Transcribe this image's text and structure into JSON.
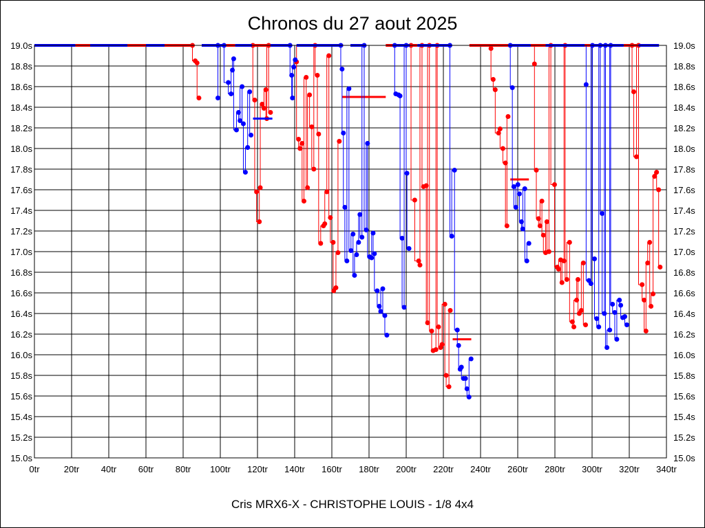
{
  "chart_data": {
    "type": "line",
    "title": "Chronos du 27 aout 2025",
    "subtitle": "Cris MRX6-X - CHRISTOPHE LOUIS - 1/8 4x4",
    "xlabel": "",
    "ylabel": "",
    "xlim": [
      0,
      340
    ],
    "ylim": [
      15.0,
      19.0
    ],
    "grid": true,
    "x_ticks": [
      "0tr",
      "20tr",
      "40tr",
      "60tr",
      "80tr",
      "100tr",
      "120tr",
      "140tr",
      "160tr",
      "180tr",
      "200tr",
      "220tr",
      "240tr",
      "260tr",
      "280tr",
      "300tr",
      "320tr",
      "340tr"
    ],
    "y_ticks": [
      "15.0s",
      "15.2s",
      "15.4s",
      "15.6s",
      "15.8s",
      "16.0s",
      "16.2s",
      "16.4s",
      "16.6s",
      "16.8s",
      "17.0s",
      "17.2s",
      "17.4s",
      "17.6s",
      "17.8s",
      "18.0s",
      "18.2s",
      "18.4s",
      "18.6s",
      "18.8s",
      "19.0s"
    ],
    "series": [
      {
        "name": "red",
        "color": "#ff0000",
        "capped_ranges": [
          [
            22,
            30
          ],
          [
            50,
            60
          ],
          [
            70,
            85
          ],
          [
            103,
            108
          ],
          [
            118,
            127
          ],
          [
            149,
            152
          ],
          [
            158,
            166
          ],
          [
            189,
            195
          ],
          [
            202,
            206
          ],
          [
            234,
            256
          ],
          [
            267,
            275
          ],
          [
            295,
            300
          ],
          [
            317,
            325
          ]
        ],
        "reference_lines": [
          {
            "y": 18.5,
            "from": 165.5,
            "to": 189
          },
          {
            "y": 16.15,
            "from": 225,
            "to": 235
          },
          {
            "y": 17.7,
            "from": 256,
            "to": 266
          }
        ],
        "points": [
          [
            85,
            19.0
          ],
          [
            86.5,
            18.85
          ],
          [
            87.5,
            18.83
          ],
          [
            88.5,
            18.49
          ],
          [
            117.5,
            19.0
          ],
          [
            118.5,
            18.47
          ],
          [
            119.5,
            17.58
          ],
          [
            121,
            17.29
          ],
          [
            121.5,
            17.62
          ],
          [
            122.5,
            18.43
          ],
          [
            123.5,
            18.39
          ],
          [
            124.5,
            18.57
          ],
          [
            125,
            18.29
          ],
          [
            126,
            19.0
          ],
          [
            127,
            18.35
          ],
          [
            141,
            18.84
          ],
          [
            142.1,
            18.09
          ],
          [
            142.9,
            18.0
          ],
          [
            144,
            18.05
          ],
          [
            145,
            17.49
          ],
          [
            146.2,
            18.69
          ],
          [
            146.9,
            17.62
          ],
          [
            148,
            18.52
          ],
          [
            149.2,
            18.21
          ],
          [
            150.3,
            17.8
          ],
          [
            151,
            19.0
          ],
          [
            152.2,
            18.71
          ],
          [
            152.9,
            18.14
          ],
          [
            154,
            17.08
          ],
          [
            155.5,
            17.25
          ],
          [
            156.2,
            17.27
          ],
          [
            157.3,
            17.58
          ],
          [
            158.4,
            18.9
          ],
          [
            159.2,
            17.33
          ],
          [
            160.7,
            17.09
          ],
          [
            161,
            16.62
          ],
          [
            162.2,
            16.65
          ],
          [
            163.3,
            16.99
          ],
          [
            164,
            18.07
          ],
          [
            202.6,
            19.0
          ],
          [
            204.6,
            17.5
          ],
          [
            206.7,
            16.91
          ],
          [
            207.4,
            16.87
          ],
          [
            208.5,
            19.0
          ],
          [
            209.3,
            17.63
          ],
          [
            210.8,
            17.64
          ],
          [
            211.5,
            16.31
          ],
          [
            212.5,
            19.0
          ],
          [
            213.7,
            16.23
          ],
          [
            214.5,
            16.04
          ],
          [
            216,
            16.05
          ],
          [
            216.7,
            19.0
          ],
          [
            217.4,
            16.27
          ],
          [
            218.5,
            16.07
          ],
          [
            219.3,
            16.1
          ],
          [
            220.8,
            16.49
          ],
          [
            221.5,
            15.8
          ],
          [
            223,
            15.69
          ],
          [
            223.7,
            16.43
          ],
          [
            245.6,
            18.97
          ],
          [
            246.8,
            18.67
          ],
          [
            247.9,
            18.57
          ],
          [
            249.7,
            18.15
          ],
          [
            250.5,
            18.19
          ],
          [
            252,
            18.0
          ],
          [
            253.4,
            17.86
          ],
          [
            254.2,
            17.25
          ],
          [
            254.8,
            18.31
          ],
          [
            269,
            18.82
          ],
          [
            270,
            17.79
          ],
          [
            271.2,
            17.32
          ],
          [
            272,
            17.25
          ],
          [
            273,
            17.49
          ],
          [
            273.8,
            17.16
          ],
          [
            275,
            16.99
          ],
          [
            275.7,
            17.29
          ],
          [
            276.8,
            17.0
          ],
          [
            277.8,
            19.0
          ],
          [
            279.8,
            17.65
          ],
          [
            281.3,
            16.85
          ],
          [
            282,
            16.83
          ],
          [
            283.1,
            16.92
          ],
          [
            283.8,
            16.7
          ],
          [
            284.9,
            16.91
          ],
          [
            285.5,
            19.0
          ],
          [
            286.4,
            16.73
          ],
          [
            287.9,
            17.09
          ],
          [
            289.4,
            16.32
          ],
          [
            290.2,
            16.27
          ],
          [
            291.7,
            16.53
          ],
          [
            292.4,
            16.73
          ],
          [
            293.1,
            16.4
          ],
          [
            294.2,
            16.43
          ],
          [
            295.3,
            16.89
          ],
          [
            296.5,
            16.29
          ],
          [
            321.5,
            19.0
          ],
          [
            322.4,
            18.55
          ],
          [
            323.9,
            17.92
          ],
          [
            325,
            19.0
          ],
          [
            326.9,
            16.68
          ],
          [
            328,
            16.53
          ],
          [
            329,
            16.23
          ],
          [
            329.9,
            16.89
          ],
          [
            331,
            17.09
          ],
          [
            331.7,
            16.47
          ],
          [
            332.8,
            16.59
          ],
          [
            333.6,
            17.73
          ],
          [
            334.7,
            17.77
          ],
          [
            335.8,
            17.6
          ],
          [
            336.6,
            16.85
          ]
        ]
      },
      {
        "name": "blue",
        "color": "#0000ff",
        "capped_ranges": [
          [
            0,
            22
          ],
          [
            30,
            50
          ],
          [
            60,
            70
          ],
          [
            90,
            103
          ],
          [
            108,
            117
          ],
          [
            127,
            138
          ],
          [
            141,
            165
          ],
          [
            170,
            177
          ],
          [
            195,
            202
          ],
          [
            206,
            223
          ],
          [
            256,
            267
          ],
          [
            275,
            296
          ],
          [
            300,
            317
          ],
          [
            325,
            336
          ]
        ],
        "reference_lines": [
          {
            "y": 18.29,
            "from": 117.6,
            "to": 128
          }
        ],
        "points": [
          [
            98.7,
            19.0
          ],
          [
            98.7,
            18.49
          ],
          [
            102,
            19.0
          ],
          [
            104.3,
            18.64
          ],
          [
            105.8,
            18.53
          ],
          [
            106.5,
            18.76
          ],
          [
            107.2,
            18.87
          ],
          [
            108.7,
            18.18
          ],
          [
            109.8,
            18.35
          ],
          [
            110.6,
            18.27
          ],
          [
            111.7,
            18.6
          ],
          [
            112.4,
            18.24
          ],
          [
            113.5,
            17.77
          ],
          [
            114.7,
            18.01
          ],
          [
            115.8,
            18.55
          ],
          [
            116.5,
            18.13
          ],
          [
            137.5,
            19.0
          ],
          [
            138.4,
            18.71
          ],
          [
            138.8,
            18.49
          ],
          [
            139.5,
            18.79
          ],
          [
            140.3,
            18.86
          ],
          [
            164.8,
            19.0
          ],
          [
            165.5,
            18.77
          ],
          [
            166.2,
            18.15
          ],
          [
            167,
            17.43
          ],
          [
            168.1,
            16.91
          ],
          [
            169.2,
            18.58
          ],
          [
            170.3,
            17.01
          ],
          [
            171.4,
            17.17
          ],
          [
            172.2,
            16.77
          ],
          [
            173.3,
            16.97
          ],
          [
            174.4,
            17.09
          ],
          [
            175.1,
            17.36
          ],
          [
            176.2,
            17.14
          ],
          [
            177.4,
            19.0
          ],
          [
            178.5,
            17.21
          ],
          [
            179.2,
            18.05
          ],
          [
            180.3,
            16.95
          ],
          [
            181.4,
            16.94
          ],
          [
            182.2,
            17.18
          ],
          [
            182.9,
            16.98
          ],
          [
            184.4,
            16.62
          ],
          [
            185.5,
            16.47
          ],
          [
            186.3,
            16.42
          ],
          [
            187.4,
            16.64
          ],
          [
            188.5,
            16.38
          ],
          [
            189.6,
            16.19
          ],
          [
            193.8,
            19.0
          ],
          [
            194.4,
            18.53
          ],
          [
            195.9,
            18.52
          ],
          [
            196.7,
            18.51
          ],
          [
            197.8,
            17.13
          ],
          [
            198.9,
            16.46
          ],
          [
            200,
            19.0
          ],
          [
            200.4,
            17.76
          ],
          [
            201.5,
            17.03
          ],
          [
            223.5,
            19.0
          ],
          [
            224.5,
            17.15
          ],
          [
            226,
            17.79
          ],
          [
            227.5,
            16.24
          ],
          [
            228.2,
            16.09
          ],
          [
            229,
            15.86
          ],
          [
            229.7,
            15.88
          ],
          [
            230.8,
            15.77
          ],
          [
            231.9,
            15.77
          ],
          [
            232.7,
            15.67
          ],
          [
            233.8,
            15.59
          ],
          [
            234.9,
            15.96
          ],
          [
            256,
            19.0
          ],
          [
            257.1,
            18.59
          ],
          [
            257.9,
            17.63
          ],
          [
            259,
            17.43
          ],
          [
            260.1,
            17.65
          ],
          [
            260.9,
            17.56
          ],
          [
            262,
            17.29
          ],
          [
            262.7,
            17.22
          ],
          [
            263.8,
            17.61
          ],
          [
            264.9,
            16.91
          ],
          [
            266,
            17.08
          ],
          [
            296.8,
            18.62
          ],
          [
            298.3,
            16.72
          ],
          [
            299.4,
            16.69
          ],
          [
            300.2,
            19.0
          ],
          [
            301.3,
            16.93
          ],
          [
            302.5,
            16.35
          ],
          [
            303.6,
            16.27
          ],
          [
            304.4,
            19.0
          ],
          [
            305.4,
            17.37
          ],
          [
            306.6,
            16.4
          ],
          [
            307.2,
            19.0
          ],
          [
            308,
            16.07
          ],
          [
            309.5,
            16.24
          ],
          [
            310,
            19.0
          ],
          [
            311,
            16.49
          ],
          [
            312.2,
            16.41
          ],
          [
            313.3,
            16.15
          ],
          [
            314.7,
            16.53
          ],
          [
            315.4,
            16.48
          ],
          [
            316.5,
            16.36
          ],
          [
            317.6,
            16.37
          ],
          [
            318.7,
            16.29
          ]
        ]
      }
    ]
  }
}
